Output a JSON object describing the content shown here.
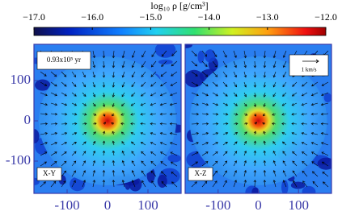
{
  "colorbar": {
    "label": "log₁₀ ρ [g/cm³]",
    "lim": [
      -17,
      -12
    ],
    "ticks": [
      {
        "value": -17,
        "label": "−17.0"
      },
      {
        "value": -16,
        "label": "−16.0"
      },
      {
        "value": -15,
        "label": "−15.0"
      },
      {
        "value": -14,
        "label": "−14.0"
      },
      {
        "value": -13,
        "label": "−13.0"
      },
      {
        "value": -12,
        "label": "−12.0"
      }
    ]
  },
  "panels": [
    {
      "label": "X-Y",
      "annotation": "0.93x10⁵ yr",
      "xlim": [
        -182,
        182
      ],
      "ylim": [
        -180,
        190
      ],
      "xticks": [
        -100,
        0,
        100
      ],
      "yticks": [
        100,
        0,
        -100
      ]
    },
    {
      "label": "X-Z",
      "annotation": "1 km/s",
      "xlim": [
        -182,
        182
      ],
      "ylim": [
        -180,
        190
      ],
      "xticks": [
        -100,
        0,
        100
      ]
    }
  ]
}
